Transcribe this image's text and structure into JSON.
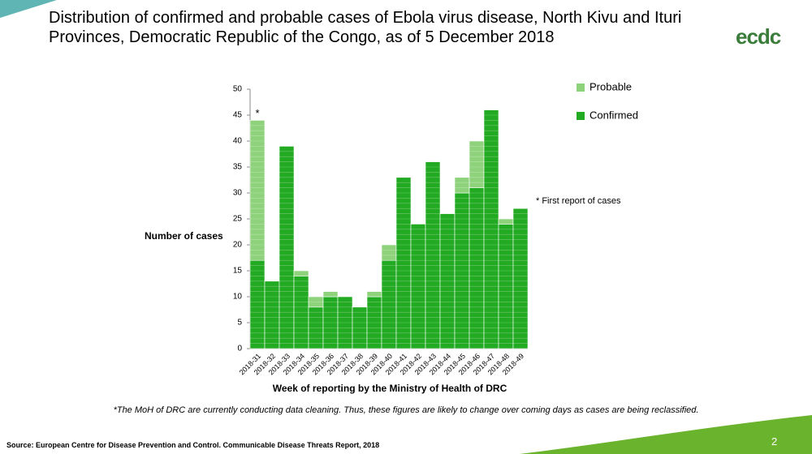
{
  "slide": {
    "title": "Distribution of confirmed and probable cases of Ebola virus disease, North Kivu and Ituri Provinces, Democratic Republic of the Congo, as of 5 December 2018",
    "logo": "ecdc",
    "note": "* First report of cases",
    "footnote": "*The MoH of DRC are currently conducting data cleaning. Thus, these figures are likely to change over coming days as cases are being reclassified.",
    "source": "Source: European Centre for Disease Prevention and Control. Communicable Disease Threats Report, 2018",
    "page": "2"
  },
  "chart_data": {
    "type": "stacked_bar",
    "x_label": "Week of reporting by the Ministry of Health of DRC",
    "y_label": "Number of cases",
    "first_bar_mark": "*",
    "categories": [
      "2018-31",
      "2018-32",
      "2018-33",
      "2018-34",
      "2018-35",
      "2018-36",
      "2018-37",
      "2018-38",
      "2018-39",
      "2018-40",
      "2018-41",
      "2018-42",
      "2018-43",
      "2018-44",
      "2018-45",
      "2018-46",
      "2018-47",
      "2018-48",
      "2018-49"
    ],
    "series": [
      {
        "name": "Confirmed",
        "color": "#22aa22",
        "values": [
          17,
          13,
          39,
          14,
          8,
          10,
          10,
          8,
          10,
          17,
          33,
          24,
          36,
          26,
          30,
          31,
          46,
          24,
          27
        ]
      },
      {
        "name": "Probable",
        "color": "#8fd27c",
        "values": [
          27,
          0,
          0,
          1,
          2,
          1,
          0,
          0,
          1,
          3,
          0,
          0,
          0,
          0,
          3,
          9,
          0,
          1,
          0
        ]
      }
    ],
    "ylim": [
      0,
      50
    ],
    "yticks": [
      0,
      5,
      10,
      15,
      20,
      25,
      30,
      35,
      40,
      45,
      50
    ],
    "legend": "top-right"
  }
}
